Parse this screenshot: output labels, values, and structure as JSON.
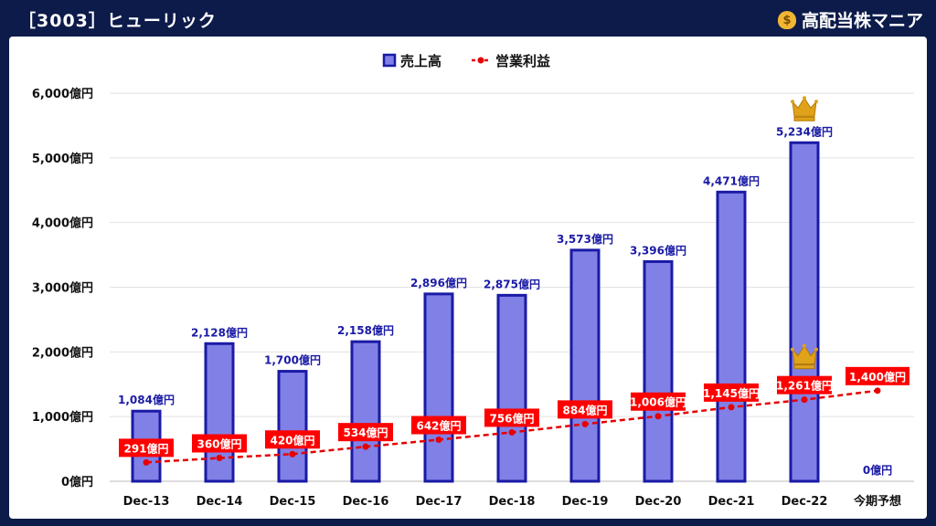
{
  "header": {
    "title": "［3003］ヒューリック",
    "brand": "高配当株マニア",
    "brand_icon": "money-bag-icon"
  },
  "colors": {
    "background": "#0d1b4a",
    "bar_fill": "#8080e6",
    "bar_stroke": "#1a1aa6",
    "line": "#e60000",
    "label_bg": "#ff0000",
    "crown": "#e0a21b"
  },
  "chart_data": {
    "type": "bar",
    "categories": [
      "Dec-13",
      "Dec-14",
      "Dec-15",
      "Dec-16",
      "Dec-17",
      "Dec-18",
      "Dec-19",
      "Dec-20",
      "Dec-21",
      "Dec-22",
      "今期予想"
    ],
    "ylim": [
      0,
      6000
    ],
    "yticks": [
      0,
      1000,
      2000,
      3000,
      4000,
      5000,
      6000
    ],
    "ytick_labels": [
      "0億円",
      "1,000億円",
      "2,000億円",
      "3,000億円",
      "4,000億円",
      "5,000億円",
      "6,000億円"
    ],
    "grid": true,
    "legend_position": "top-center",
    "series": [
      {
        "name": "売上高",
        "type": "bar",
        "values": [
          1084,
          2128,
          1700,
          2158,
          2896,
          2875,
          3573,
          3396,
          4471,
          5234,
          0
        ],
        "labels": [
          "1,084億円",
          "2,128億円",
          "1,700億円",
          "2,158億円",
          "2,896億円",
          "2,875億円",
          "3,573億円",
          "3,396億円",
          "4,471億円",
          "5,234億円",
          "0億円"
        ],
        "max_marker_index": 9
      },
      {
        "name": "営業利益",
        "type": "line",
        "style": "dashed",
        "values": [
          291,
          360,
          420,
          534,
          642,
          756,
          884,
          1006,
          1145,
          1261,
          1400
        ],
        "labels": [
          "291億円",
          "360億円",
          "420億円",
          "534億円",
          "642億円",
          "756億円",
          "884億円",
          "1,006億円",
          "1,145億円",
          "1,261億円",
          "1,400億円"
        ],
        "max_marker_index": 9,
        "forecast_index": 10
      }
    ]
  }
}
